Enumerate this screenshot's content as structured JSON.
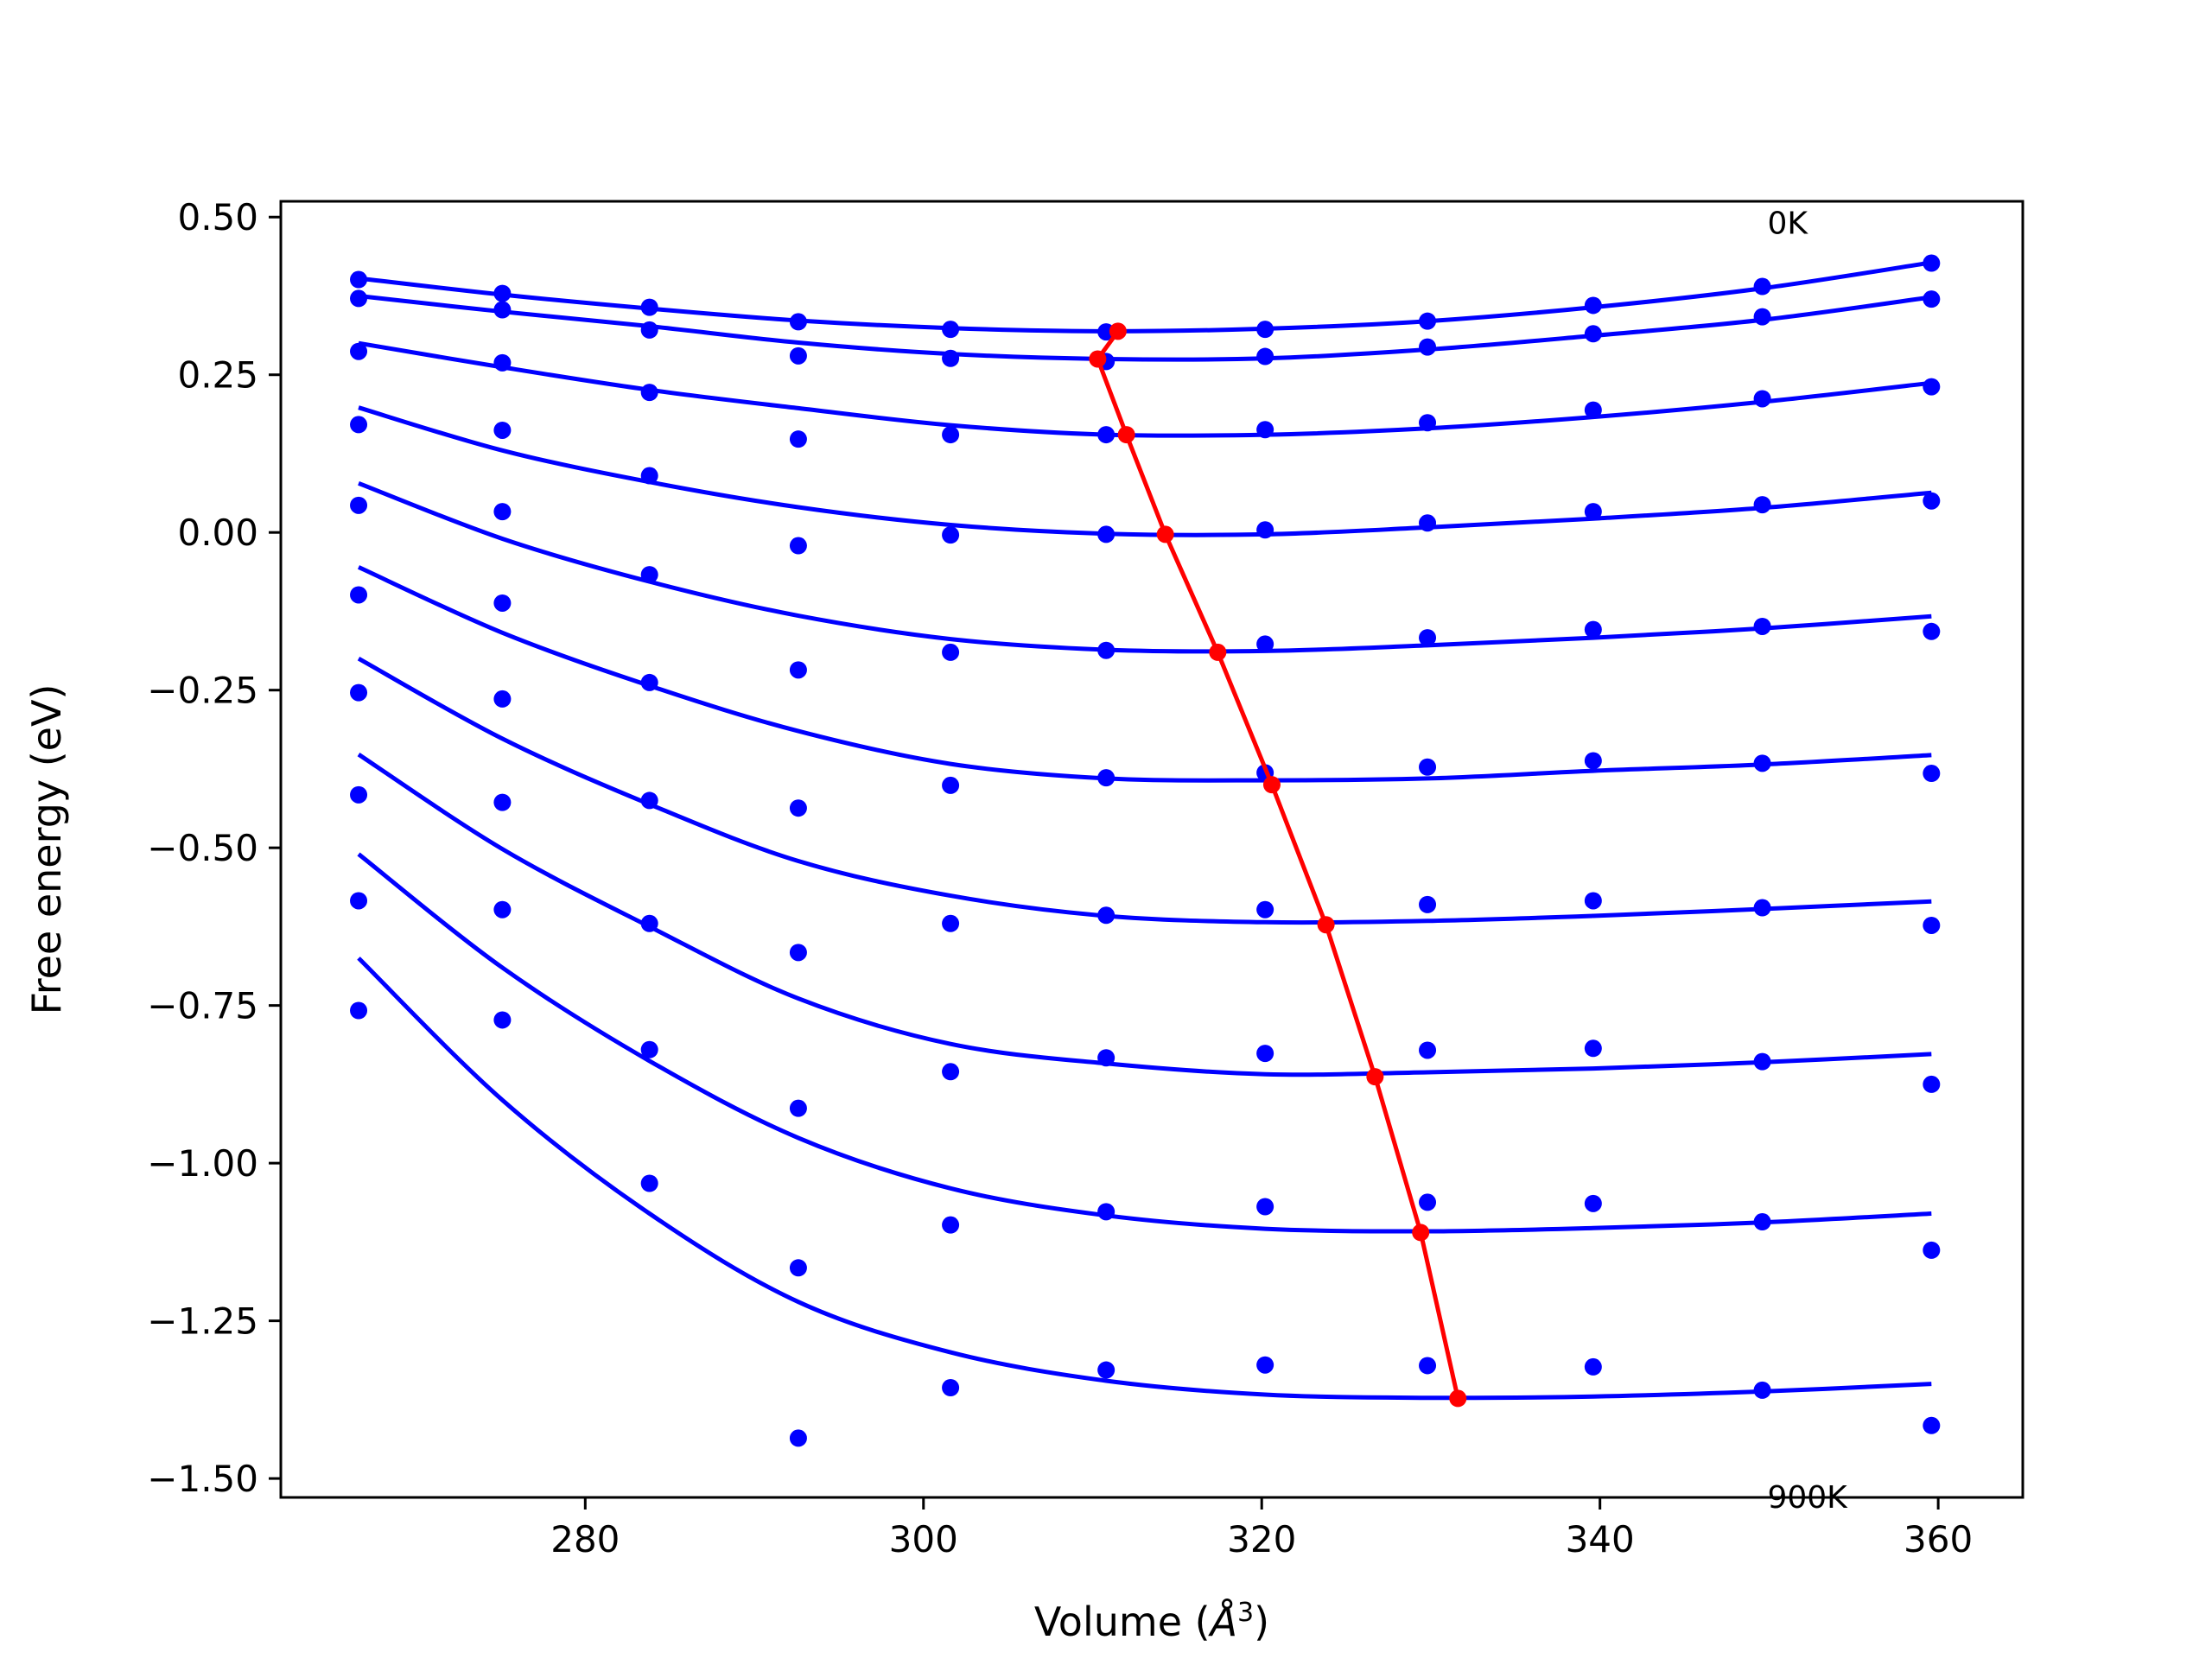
{
  "chart_data": {
    "type": "line",
    "title": "",
    "xlabel_pre": "Volume (",
    "xlabel_unit": "Å",
    "xlabel_sup": "3",
    "xlabel_post": ")",
    "ylabel": "Free energy (eV)",
    "xlim": [
      262,
      365
    ],
    "ylim": [
      -1.53,
      0.525
    ],
    "xticks": [
      280,
      300,
      320,
      340,
      360
    ],
    "xtick_labels": [
      "280",
      "300",
      "320",
      "340",
      "360"
    ],
    "yticks": [
      0.5,
      0.25,
      0.0,
      -0.25,
      -0.5,
      -0.75,
      -1.0,
      -1.25,
      -1.5
    ],
    "ytick_labels": [
      "0.50",
      "0.25",
      "0.00",
      "−0.25",
      "−0.50",
      "−0.75",
      "−1.00",
      "−1.25",
      "−1.50"
    ],
    "grid": false,
    "colors": {
      "points": "#0000ff",
      "fits": "#0000ff",
      "minima": "#ff0000",
      "frame": "#000000"
    },
    "annotations": [
      {
        "text": "0K",
        "x": 349.9,
        "y": 0.49
      },
      {
        "text": "900K",
        "x": 349.9,
        "y": -1.53
      }
    ],
    "volumes": [
      266.6,
      275.1,
      283.8,
      292.6,
      301.6,
      310.8,
      320.2,
      329.8,
      339.6,
      349.6,
      359.6
    ],
    "series": [
      {
        "points": [
          0.401,
          0.379,
          0.357,
          0.334,
          0.322,
          0.318,
          0.322,
          0.335,
          0.36,
          0.39,
          0.427
        ],
        "fit": [
          0.403,
          0.377,
          0.355,
          0.336,
          0.324,
          0.319,
          0.323,
          0.335,
          0.357,
          0.387,
          0.428
        ]
      },
      {
        "points": [
          0.371,
          0.353,
          0.321,
          0.28,
          0.276,
          0.271,
          0.279,
          0.294,
          0.315,
          0.342,
          0.37
        ],
        "fit": [
          0.375,
          0.35,
          0.327,
          0.301,
          0.283,
          0.275,
          0.276,
          0.29,
          0.312,
          0.337,
          0.373
        ]
      },
      {
        "points": [
          0.287,
          0.269,
          0.222,
          0.148,
          0.155,
          0.155,
          0.163,
          0.174,
          0.194,
          0.212,
          0.231
        ],
        "fit": [
          0.3,
          0.262,
          0.226,
          0.197,
          0.17,
          0.155,
          0.155,
          0.165,
          0.183,
          0.207,
          0.237
        ]
      },
      {
        "points": [
          0.171,
          0.162,
          0.09,
          -0.021,
          -0.004,
          -0.003,
          0.004,
          0.015,
          0.033,
          0.044,
          0.05
        ],
        "fit": [
          0.198,
          0.13,
          0.08,
          0.04,
          0.012,
          -0.002,
          -0.003,
          0.008,
          0.022,
          0.039,
          0.063
        ]
      },
      {
        "points": [
          0.043,
          0.033,
          -0.067,
          -0.218,
          -0.19,
          -0.187,
          -0.177,
          -0.167,
          -0.154,
          -0.149,
          -0.157
        ],
        "fit": [
          0.078,
          -0.01,
          -0.078,
          -0.132,
          -0.169,
          -0.186,
          -0.188,
          -0.179,
          -0.167,
          -0.152,
          -0.133
        ]
      },
      {
        "points": [
          -0.099,
          -0.112,
          -0.238,
          -0.437,
          -0.401,
          -0.389,
          -0.381,
          -0.372,
          -0.362,
          -0.366,
          -0.382
        ],
        "fit": [
          -0.055,
          -0.159,
          -0.243,
          -0.315,
          -0.367,
          -0.39,
          -0.393,
          -0.39,
          -0.378,
          -0.368,
          -0.353
        ]
      },
      {
        "points": [
          -0.254,
          -0.264,
          -0.425,
          -0.666,
          -0.62,
          -0.607,
          -0.598,
          -0.59,
          -0.584,
          -0.595,
          -0.623
        ],
        "fit": [
          -0.2,
          -0.327,
          -0.431,
          -0.521,
          -0.576,
          -0.608,
          -0.618,
          -0.616,
          -0.608,
          -0.597,
          -0.585
        ]
      },
      {
        "points": [
          -0.416,
          -0.428,
          -0.62,
          -0.913,
          -0.855,
          -0.833,
          -0.826,
          -0.821,
          -0.818,
          -0.839,
          -0.875
        ],
        "fit": [
          -0.352,
          -0.502,
          -0.625,
          -0.739,
          -0.811,
          -0.842,
          -0.859,
          -0.856,
          -0.85,
          -0.84,
          -0.827
        ]
      },
      {
        "points": [
          -0.584,
          -0.598,
          -0.82,
          -1.166,
          -1.098,
          -1.077,
          -1.069,
          -1.062,
          -1.064,
          -1.093,
          -1.138
        ],
        "fit": [
          -0.51,
          -0.69,
          -0.838,
          -0.96,
          -1.04,
          -1.083,
          -1.104,
          -1.108,
          -1.103,
          -1.094,
          -1.08
        ]
      },
      {
        "points": [
          -0.758,
          -0.773,
          -1.032,
          -1.436,
          -1.356,
          -1.328,
          -1.32,
          -1.321,
          -1.323,
          -1.36,
          -1.416
        ],
        "fit": [
          -0.675,
          -0.9,
          -1.08,
          -1.22,
          -1.3,
          -1.345,
          -1.367,
          -1.372,
          -1.37,
          -1.362,
          -1.35
        ]
      }
    ],
    "minima": {
      "x": [
        311.5,
        310.3,
        312.0,
        314.3,
        317.4,
        320.6,
        323.8,
        326.7,
        329.4,
        331.6
      ],
      "y": [
        0.319,
        0.275,
        0.155,
        -0.003,
        -0.19,
        -0.4,
        -0.622,
        -0.863,
        -1.11,
        -1.373
      ]
    }
  }
}
